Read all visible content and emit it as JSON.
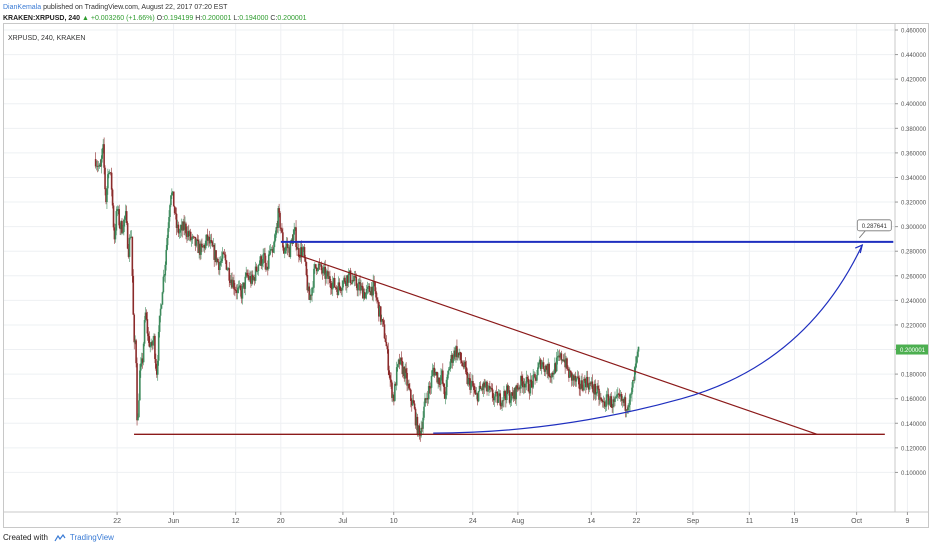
{
  "header": {
    "author": "DianKemala",
    "published": "published on TradingView.com, August 22, 2017 07:20 EST",
    "symbol_line": "KRAKEN:XRPUSD, 240",
    "change": "▲ +0.003260 (+1.66%)",
    "o_label": "O:",
    "o_value": "0.194199",
    "h_label": "H:",
    "h_value": "0.200001",
    "l_label": "L:",
    "l_value": "0.194000",
    "c_label": "C:",
    "c_value": "0.200001"
  },
  "footer": {
    "created_with": "Created with",
    "brand": "TradingView"
  },
  "colors": {
    "up": "#3d8a5c",
    "down": "#8b2b2b",
    "blue": "#1f2fbf",
    "red": "#8b1a1a",
    "price_badge": "#4caf50"
  },
  "chart_data": {
    "type": "candlestick",
    "symbol_label": "XRPUSD, 240, KRAKEN",
    "ylim": [
      0.08,
      0.46
    ],
    "y_ticks": [
      "0.100000",
      "0.120000",
      "0.140000",
      "0.160000",
      "0.180000",
      "0.200000",
      "0.220000",
      "0.240000",
      "0.260000",
      "0.280000",
      "0.300000",
      "0.320000",
      "0.340000",
      "0.360000",
      "0.380000",
      "0.400000",
      "0.420000",
      "0.440000",
      "0.460000"
    ],
    "x_ticks": [
      "22",
      "Jun",
      "12",
      "20",
      "Jul",
      "10",
      "24",
      "Aug",
      "14",
      "22",
      "Sep",
      "11",
      "19",
      "Oct",
      "9"
    ],
    "x_tick_days": [
      22,
      32,
      43,
      51,
      62,
      71,
      85,
      93,
      106,
      114,
      124,
      134,
      142,
      153,
      162
    ],
    "x_range_days": [
      11,
      166
    ],
    "last_price": "0.200001",
    "target_label": "0.287641",
    "close_path": [
      [
        18.2,
        0.355
      ],
      [
        19,
        0.345
      ],
      [
        19.5,
        0.365
      ],
      [
        20,
        0.32
      ],
      [
        20.5,
        0.35
      ],
      [
        21,
        0.335
      ],
      [
        21.5,
        0.29
      ],
      [
        22,
        0.315
      ],
      [
        22.5,
        0.3
      ],
      [
        23,
        0.3
      ],
      [
        23.5,
        0.31
      ],
      [
        24,
        0.28
      ],
      [
        24.5,
        0.3
      ],
      [
        25,
        0.2
      ],
      [
        25.3,
        0.21
      ],
      [
        25.6,
        0.13
      ],
      [
        26,
        0.18
      ],
      [
        26.5,
        0.19
      ],
      [
        27,
        0.23
      ],
      [
        27.5,
        0.21
      ],
      [
        28,
        0.2
      ],
      [
        28.5,
        0.21
      ],
      [
        29,
        0.18
      ],
      [
        29.5,
        0.22
      ],
      [
        30,
        0.25
      ],
      [
        30.5,
        0.27
      ],
      [
        31,
        0.3
      ],
      [
        31.5,
        0.33
      ],
      [
        32,
        0.32
      ],
      [
        32.5,
        0.3
      ],
      [
        33,
        0.295
      ],
      [
        34,
        0.3
      ],
      [
        35,
        0.29
      ],
      [
        36,
        0.285
      ],
      [
        37,
        0.28
      ],
      [
        38,
        0.29
      ],
      [
        39,
        0.28
      ],
      [
        40,
        0.27
      ],
      [
        41,
        0.275
      ],
      [
        42,
        0.26
      ],
      [
        43,
        0.25
      ],
      [
        44,
        0.245
      ],
      [
        45,
        0.26
      ],
      [
        46,
        0.255
      ],
      [
        47,
        0.27
      ],
      [
        48,
        0.275
      ],
      [
        48.5,
        0.26
      ],
      [
        49,
        0.28
      ],
      [
        49.5,
        0.275
      ],
      [
        50,
        0.29
      ],
      [
        50.5,
        0.31
      ],
      [
        51,
        0.3
      ],
      [
        51.5,
        0.28
      ],
      [
        52,
        0.285
      ],
      [
        52.5,
        0.28
      ],
      [
        53,
        0.29
      ],
      [
        53.5,
        0.295
      ],
      [
        54,
        0.28
      ],
      [
        55,
        0.28
      ],
      [
        55.5,
        0.26
      ],
      [
        56,
        0.24
      ],
      [
        56.5,
        0.25
      ],
      [
        57,
        0.265
      ],
      [
        57.5,
        0.27
      ],
      [
        58,
        0.265
      ],
      [
        59,
        0.26
      ],
      [
        60,
        0.255
      ],
      [
        61,
        0.25
      ],
      [
        62,
        0.255
      ],
      [
        63,
        0.26
      ],
      [
        64,
        0.255
      ],
      [
        65,
        0.25
      ],
      [
        66,
        0.245
      ],
      [
        67,
        0.25
      ],
      [
        67.5,
        0.25
      ],
      [
        68,
        0.24
      ],
      [
        69,
        0.22
      ],
      [
        69.5,
        0.21
      ],
      [
        70,
        0.19
      ],
      [
        70.5,
        0.17
      ],
      [
        71,
        0.16
      ],
      [
        71.5,
        0.18
      ],
      [
        72,
        0.19
      ],
      [
        72.5,
        0.185
      ],
      [
        73,
        0.18
      ],
      [
        73.5,
        0.17
      ],
      [
        74,
        0.16
      ],
      [
        74.5,
        0.155
      ],
      [
        75,
        0.14
      ],
      [
        75.5,
        0.13
      ],
      [
        76,
        0.14
      ],
      [
        76.5,
        0.155
      ],
      [
        77,
        0.165
      ],
      [
        77.5,
        0.17
      ],
      [
        78,
        0.185
      ],
      [
        78.5,
        0.18
      ],
      [
        79,
        0.175
      ],
      [
        79.5,
        0.18
      ],
      [
        80,
        0.16
      ],
      [
        80.5,
        0.175
      ],
      [
        81,
        0.19
      ],
      [
        81.5,
        0.195
      ],
      [
        82,
        0.2
      ],
      [
        82.5,
        0.195
      ],
      [
        83,
        0.19
      ],
      [
        83.5,
        0.185
      ],
      [
        84,
        0.175
      ],
      [
        85,
        0.17
      ],
      [
        85.5,
        0.16
      ],
      [
        86,
        0.165
      ],
      [
        87,
        0.17
      ],
      [
        88,
        0.165
      ],
      [
        89,
        0.16
      ],
      [
        90,
        0.16
      ],
      [
        91,
        0.165
      ],
      [
        92,
        0.16
      ],
      [
        93,
        0.17
      ],
      [
        94,
        0.175
      ],
      [
        95,
        0.17
      ],
      [
        96,
        0.175
      ],
      [
        97,
        0.19
      ],
      [
        98,
        0.185
      ],
      [
        99,
        0.18
      ],
      [
        100,
        0.19
      ],
      [
        101,
        0.195
      ],
      [
        102,
        0.18
      ],
      [
        103,
        0.175
      ],
      [
        104,
        0.17
      ],
      [
        105,
        0.175
      ],
      [
        106,
        0.17
      ],
      [
        107,
        0.165
      ],
      [
        108,
        0.155
      ],
      [
        109,
        0.16
      ],
      [
        110,
        0.155
      ],
      [
        111,
        0.16
      ],
      [
        112,
        0.155
      ],
      [
        113,
        0.16
      ],
      [
        113.5,
        0.175
      ],
      [
        114,
        0.19
      ],
      [
        114.5,
        0.2
      ]
    ],
    "lines": [
      {
        "name": "blue-target-line",
        "color": "blue",
        "y": 0.287641,
        "x_from": 51,
        "x_to": 159.5
      },
      {
        "name": "support-line",
        "color": "red",
        "y": 0.131,
        "x_from": 25,
        "x_to": 158
      },
      {
        "name": "descending-trendline",
        "color": "red",
        "x_from": 54,
        "y_from": 0.277,
        "x_to": 146,
        "y_to": 0.131
      }
    ],
    "curve": {
      "name": "projection-curve",
      "color": "blue",
      "points": [
        [
          78,
          0.132
        ],
        [
          100,
          0.132
        ],
        [
          122,
          0.16
        ],
        [
          142,
          0.22
        ],
        [
          154,
          0.285
        ]
      ]
    }
  }
}
